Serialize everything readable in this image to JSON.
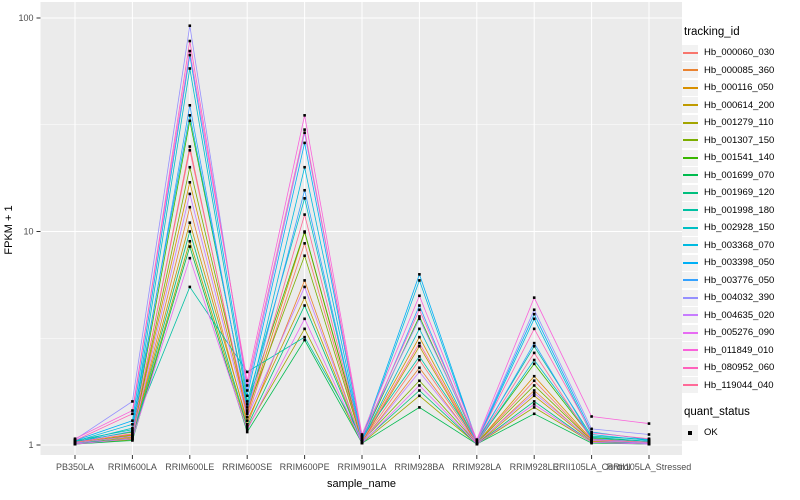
{
  "figure": {
    "panel_bg": "#EBEBEB",
    "grid_color": "#FFFFFF",
    "tick_label_color": "#4D4D4D",
    "tick_mark_color": "#333333",
    "point_color": "#000000"
  },
  "axes": {
    "x_title": "sample_name",
    "y_title": "FPKM + 1",
    "y_tick_labels": [
      "1",
      "10",
      "100"
    ],
    "y_tick_values": [
      1,
      10,
      100
    ],
    "y_minor_values": [
      3.1623,
      31.623
    ],
    "y_scale": "log10"
  },
  "legend": {
    "tracking_title": "tracking_id",
    "quant_title": "quant_status",
    "quant_items": [
      {
        "label": "OK",
        "shape": "square",
        "color": "#000000"
      }
    ]
  },
  "chart_data": {
    "type": "line",
    "title": "",
    "xlabel": "sample_name",
    "ylabel": "FPKM + 1",
    "y_axis": {
      "scale": "log10",
      "ticks": [
        1,
        10,
        100
      ],
      "range_px_mapping": "1->y445, 10->y231.5, 100->y18"
    },
    "grid": true,
    "legend_position": "right",
    "categories": [
      "PB350LA",
      "RRIM600LA",
      "RRIM600LE",
      "RRIM600SE",
      "RRIM600PE",
      "RRIM901LA",
      "RRIM928BA",
      "RRIM928LA",
      "RRIM928LE",
      "RRII105LA_Control",
      "RRII105LA_Stressed"
    ],
    "series": [
      {
        "name": "Hb_000060_030",
        "color": "#F8766D",
        "values": [
          1.02,
          1.1,
          25.0,
          1.35,
          8.8,
          1.04,
          2.5,
          1.02,
          2.0,
          1.05,
          1.02
        ]
      },
      {
        "name": "Hb_000085_360",
        "color": "#EA8331",
        "values": [
          1.01,
          1.08,
          13.0,
          1.25,
          5.9,
          1.03,
          2.3,
          1.01,
          1.8,
          1.04,
          1.01
        ]
      },
      {
        "name": "Hb_000116_050",
        "color": "#D89000",
        "values": [
          1.03,
          1.12,
          17.0,
          1.4,
          9.9,
          1.05,
          3.2,
          1.02,
          2.1,
          1.06,
          1.03
        ]
      },
      {
        "name": "Hb_000614_200",
        "color": "#C09B00",
        "values": [
          1.02,
          1.09,
          11.0,
          1.3,
          4.9,
          1.03,
          2.9,
          1.01,
          1.7,
          1.04,
          1.02
        ]
      },
      {
        "name": "Hb_001279_110",
        "color": "#A3A500",
        "values": [
          1.01,
          1.06,
          9.0,
          1.2,
          3.5,
          1.02,
          1.7,
          1.01,
          1.5,
          1.03,
          1.01
        ]
      },
      {
        "name": "Hb_001307_150",
        "color": "#7CAE00",
        "values": [
          1.02,
          1.11,
          20.0,
          1.45,
          7.7,
          1.04,
          2.0,
          1.02,
          1.9,
          1.05,
          1.02
        ]
      },
      {
        "name": "Hb_001541_140",
        "color": "#39B600",
        "values": [
          1.04,
          1.15,
          33.0,
          1.55,
          10.0,
          1.06,
          4.0,
          1.03,
          2.4,
          1.08,
          1.04
        ]
      },
      {
        "name": "Hb_001699_070",
        "color": "#00BB4E",
        "values": [
          1.01,
          1.05,
          8.5,
          1.15,
          3.1,
          1.02,
          1.5,
          1.01,
          1.4,
          1.02,
          1.01
        ]
      },
      {
        "name": "Hb_001969_120",
        "color": "#00BF7D",
        "values": [
          1.02,
          1.07,
          10.0,
          1.22,
          4.5,
          1.03,
          1.8,
          1.01,
          1.6,
          1.03,
          1.02
        ]
      },
      {
        "name": "Hb_001998_180",
        "color": "#00C1A3",
        "values": [
          1.05,
          1.18,
          5.5,
          2.2,
          3.2,
          1.08,
          2.6,
          1.04,
          2.9,
          1.1,
          1.06
        ]
      },
      {
        "name": "Hb_002928_150",
        "color": "#00BFC4",
        "values": [
          1.03,
          1.2,
          58.0,
          1.6,
          14.3,
          1.05,
          3.5,
          1.02,
          2.5,
          1.09,
          1.04
        ]
      },
      {
        "name": "Hb_003368_070",
        "color": "#00BAE0",
        "values": [
          1.04,
          1.25,
          35.0,
          1.5,
          20.0,
          1.06,
          5.9,
          1.03,
          3.9,
          1.12,
          1.05
        ]
      },
      {
        "name": "Hb_003398_050",
        "color": "#00B0F6",
        "values": [
          1.05,
          1.3,
          67.0,
          1.7,
          26.0,
          1.08,
          6.3,
          1.04,
          4.1,
          1.15,
          1.06
        ]
      },
      {
        "name": "Hb_003776_050",
        "color": "#35A2FF",
        "values": [
          1.03,
          1.16,
          39.0,
          1.45,
          15.6,
          1.05,
          4.5,
          1.02,
          3.0,
          1.07,
          1.03
        ]
      },
      {
        "name": "Hb_004032_390",
        "color": "#9590FF",
        "values": [
          1.06,
          1.6,
          92.0,
          1.8,
          29.0,
          1.1,
          3.9,
          1.05,
          4.3,
          1.19,
          1.12
        ]
      },
      {
        "name": "Hb_004635_020",
        "color": "#C77CFF",
        "values": [
          1.02,
          1.1,
          15.0,
          1.35,
          5.5,
          1.03,
          2.2,
          1.02,
          1.75,
          1.05,
          1.02
        ]
      },
      {
        "name": "Hb_005276_090",
        "color": "#E76BF3",
        "values": [
          1.01,
          1.07,
          7.5,
          1.18,
          3.9,
          1.02,
          1.9,
          1.01,
          1.55,
          1.03,
          1.01
        ]
      },
      {
        "name": "Hb_011849_010",
        "color": "#FA62DB",
        "values": [
          1.07,
          1.45,
          70.0,
          2.0,
          35.0,
          1.12,
          5.0,
          1.06,
          4.9,
          1.36,
          1.26
        ]
      },
      {
        "name": "Hb_080952_060",
        "color": "#FF62BC",
        "values": [
          1.05,
          1.4,
          78.0,
          1.9,
          30.0,
          1.09,
          4.3,
          1.04,
          3.5,
          1.14,
          1.07
        ]
      },
      {
        "name": "Hb_119044_040",
        "color": "#FF6A98",
        "values": [
          1.03,
          1.13,
          24.0,
          1.42,
          12.0,
          1.04,
          3.0,
          1.02,
          2.7,
          1.06,
          1.03
        ]
      }
    ]
  }
}
